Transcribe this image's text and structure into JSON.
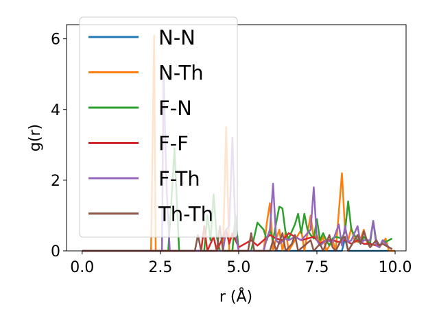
{
  "chart_data": {
    "type": "line",
    "xlabel": "r (Å)",
    "ylabel": "g(r)",
    "xlim": [
      -0.5,
      10.35
    ],
    "ylim": [
      0,
      6.4
    ],
    "x_ticks": [
      0.0,
      2.5,
      5.0,
      7.5,
      10.0
    ],
    "x_tick_labels": [
      "0.0",
      "2.5",
      "5.0",
      "7.5",
      "10.0"
    ],
    "y_ticks": [
      0,
      2,
      4,
      6
    ],
    "y_tick_labels": [
      "0",
      "2",
      "4",
      "6"
    ],
    "grid": false,
    "legend_position": "upper-left",
    "series": [
      {
        "name": "N-N",
        "color": "#1f77b4",
        "points": [
          [
            0,
            0
          ],
          [
            8.3,
            0
          ],
          [
            8.4,
            0.35
          ],
          [
            8.5,
            0
          ],
          [
            10,
            0
          ]
        ]
      },
      {
        "name": "N-Th",
        "color": "#ff7f0e",
        "points": [
          [
            0,
            0
          ],
          [
            2.1,
            0
          ],
          [
            2.2,
            0
          ],
          [
            2.3,
            6.1
          ],
          [
            2.35,
            0
          ],
          [
            2.5,
            0
          ],
          [
            4.5,
            0
          ],
          [
            4.6,
            3.5
          ],
          [
            4.7,
            0
          ],
          [
            5.0,
            0
          ],
          [
            5.8,
            0
          ],
          [
            5.9,
            0.8
          ],
          [
            6.0,
            1.35
          ],
          [
            6.1,
            0
          ],
          [
            6.2,
            0.35
          ],
          [
            6.3,
            0.6
          ],
          [
            6.4,
            0
          ],
          [
            6.5,
            0.55
          ],
          [
            6.6,
            0
          ],
          [
            6.8,
            0.3
          ],
          [
            7.0,
            0.6
          ],
          [
            7.1,
            0
          ],
          [
            7.2,
            0.5
          ],
          [
            7.3,
            1.0
          ],
          [
            7.4,
            0.35
          ],
          [
            7.5,
            0.45
          ],
          [
            7.6,
            0.2
          ],
          [
            7.7,
            0.4
          ],
          [
            7.8,
            0
          ],
          [
            8.0,
            0.3
          ],
          [
            8.1,
            0
          ],
          [
            8.3,
            2.2
          ],
          [
            8.4,
            0.6
          ],
          [
            8.5,
            0.3
          ],
          [
            8.6,
            0.65
          ],
          [
            8.7,
            0.3
          ],
          [
            8.8,
            0.25
          ],
          [
            8.9,
            0.35
          ],
          [
            9.0,
            0.6
          ],
          [
            9.1,
            0.25
          ],
          [
            9.2,
            0.1
          ],
          [
            9.4,
            0.3
          ],
          [
            9.5,
            0.1
          ],
          [
            9.7,
            0.35
          ],
          [
            9.8,
            0
          ],
          [
            10,
            0
          ]
        ]
      },
      {
        "name": "F-N",
        "color": "#2ca02c",
        "points": [
          [
            0,
            0
          ],
          [
            2.75,
            0
          ],
          [
            2.85,
            1.4
          ],
          [
            2.95,
            2.9
          ],
          [
            3.05,
            0.9
          ],
          [
            3.1,
            0
          ],
          [
            3.9,
            0
          ],
          [
            4.0,
            1.0
          ],
          [
            4.1,
            0.3
          ],
          [
            4.2,
            1.6
          ],
          [
            4.3,
            0.4
          ],
          [
            4.4,
            0
          ],
          [
            4.8,
            0
          ],
          [
            4.9,
            1.0
          ],
          [
            5.0,
            0
          ],
          [
            5.4,
            0
          ],
          [
            5.6,
            0.8
          ],
          [
            5.8,
            0.6
          ],
          [
            5.9,
            0.3
          ],
          [
            6.0,
            0.6
          ],
          [
            6.1,
            0.3
          ],
          [
            6.2,
            0.8
          ],
          [
            6.3,
            1.25
          ],
          [
            6.4,
            1.2
          ],
          [
            6.5,
            0.5
          ],
          [
            6.6,
            0.35
          ],
          [
            6.8,
            0.75
          ],
          [
            6.9,
            1.05
          ],
          [
            7.0,
            0.5
          ],
          [
            7.1,
            1.05
          ],
          [
            7.2,
            0.6
          ],
          [
            7.3,
            0.45
          ],
          [
            7.4,
            0.35
          ],
          [
            7.5,
            0.9
          ],
          [
            7.6,
            0.3
          ],
          [
            7.7,
            0.5
          ],
          [
            7.8,
            0.3
          ],
          [
            7.9,
            0.15
          ],
          [
            8.0,
            0.35
          ],
          [
            8.1,
            0.4
          ],
          [
            8.3,
            0.35
          ],
          [
            8.4,
            0.55
          ],
          [
            8.5,
            1.4
          ],
          [
            8.6,
            0.6
          ],
          [
            8.7,
            0.45
          ],
          [
            8.8,
            0.3
          ],
          [
            8.9,
            0.2
          ],
          [
            9.0,
            0.4
          ],
          [
            9.2,
            0.2
          ],
          [
            9.3,
            0.85
          ],
          [
            9.4,
            0.25
          ],
          [
            9.5,
            0.1
          ],
          [
            9.6,
            0.3
          ],
          [
            9.7,
            0.25
          ],
          [
            9.8,
            0.3
          ],
          [
            9.9,
            0.35
          ]
        ]
      },
      {
        "name": "F-F",
        "color": "#d62728",
        "points": [
          [
            0,
            0
          ],
          [
            3.8,
            0
          ],
          [
            3.9,
            0.7
          ],
          [
            4.0,
            0
          ],
          [
            4.2,
            0.4
          ],
          [
            4.3,
            0
          ],
          [
            4.6,
            0.6
          ],
          [
            4.7,
            0.2
          ],
          [
            4.8,
            0.5
          ],
          [
            4.9,
            0.3
          ],
          [
            5.0,
            0.1
          ],
          [
            5.4,
            0.3
          ],
          [
            5.6,
            0.15
          ],
          [
            5.8,
            0.3
          ],
          [
            6.0,
            0.45
          ],
          [
            6.2,
            0.35
          ],
          [
            6.4,
            0.3
          ],
          [
            6.6,
            0.5
          ],
          [
            6.8,
            0.4
          ],
          [
            7.0,
            0.3
          ],
          [
            7.2,
            0.35
          ],
          [
            7.4,
            0.4
          ],
          [
            7.6,
            0.2
          ],
          [
            7.8,
            0.3
          ],
          [
            8.0,
            0.3
          ],
          [
            8.2,
            0.25
          ],
          [
            8.4,
            0.3
          ],
          [
            8.6,
            0.2
          ],
          [
            8.8,
            0.3
          ],
          [
            9.0,
            0.2
          ],
          [
            9.2,
            0.2
          ],
          [
            9.4,
            0.15
          ],
          [
            9.6,
            0.2
          ],
          [
            9.8,
            0.1
          ],
          [
            9.9,
            0.05
          ]
        ]
      },
      {
        "name": "F-Th",
        "color": "#9467bd",
        "points": [
          [
            0,
            0
          ],
          [
            2.55,
            0
          ],
          [
            2.6,
            5.0
          ],
          [
            2.7,
            1.7
          ],
          [
            2.8,
            0
          ],
          [
            3.0,
            0
          ],
          [
            4.5,
            0
          ],
          [
            4.6,
            0.6
          ],
          [
            4.7,
            0.7
          ],
          [
            4.8,
            3.2
          ],
          [
            4.9,
            0.5
          ],
          [
            5.0,
            0
          ],
          [
            5.8,
            0
          ],
          [
            5.9,
            0.35
          ],
          [
            6.0,
            0.6
          ],
          [
            6.1,
            1.9
          ],
          [
            6.2,
            0.3
          ],
          [
            6.3,
            0.2
          ],
          [
            6.5,
            0.35
          ],
          [
            6.6,
            0.3
          ],
          [
            6.8,
            0.4
          ],
          [
            7.0,
            0.3
          ],
          [
            7.2,
            0.5
          ],
          [
            7.3,
            0.6
          ],
          [
            7.4,
            1.8
          ],
          [
            7.5,
            0.3
          ],
          [
            7.6,
            0.15
          ],
          [
            7.8,
            0.3
          ],
          [
            8.0,
            0.25
          ],
          [
            8.1,
            0.5
          ],
          [
            8.2,
            0.75
          ],
          [
            8.3,
            0.15
          ],
          [
            8.4,
            0.7
          ],
          [
            8.5,
            0.25
          ],
          [
            8.6,
            0.3
          ],
          [
            8.8,
            0.7
          ],
          [
            8.9,
            0.2
          ],
          [
            9.0,
            0.3
          ],
          [
            9.2,
            0.3
          ],
          [
            9.3,
            0.85
          ],
          [
            9.4,
            0.15
          ],
          [
            9.5,
            0.1
          ],
          [
            9.6,
            0.3
          ],
          [
            9.8,
            0.1
          ],
          [
            9.9,
            0.05
          ]
        ]
      },
      {
        "name": "Th-Th",
        "color": "#8c564b",
        "points": [
          [
            0,
            0
          ],
          [
            3.6,
            0
          ],
          [
            3.7,
            0.45
          ],
          [
            3.8,
            0
          ],
          [
            4.3,
            0
          ],
          [
            4.4,
            0.7
          ],
          [
            4.5,
            0
          ],
          [
            5.3,
            0
          ],
          [
            5.4,
            0.5
          ],
          [
            5.5,
            0
          ],
          [
            6.0,
            0
          ],
          [
            6.1,
            0.3
          ],
          [
            6.2,
            0
          ],
          [
            6.4,
            0.5
          ],
          [
            6.5,
            0
          ],
          [
            6.7,
            0.2
          ],
          [
            6.8,
            0.45
          ],
          [
            6.9,
            0
          ],
          [
            7.3,
            0.3
          ],
          [
            7.4,
            0
          ],
          [
            7.6,
            0.2
          ],
          [
            7.7,
            0
          ],
          [
            7.9,
            0.45
          ],
          [
            8.0,
            0.1
          ],
          [
            8.1,
            0
          ],
          [
            8.3,
            0.35
          ],
          [
            8.4,
            0.4
          ],
          [
            8.5,
            0
          ],
          [
            8.8,
            0.45
          ],
          [
            8.9,
            0.2
          ],
          [
            9.0,
            0.55
          ],
          [
            9.1,
            0.3
          ],
          [
            9.2,
            0.1
          ],
          [
            9.4,
            0.3
          ],
          [
            9.5,
            0.15
          ],
          [
            9.6,
            0.2
          ],
          [
            9.8,
            0.1
          ],
          [
            9.9,
            0.05
          ]
        ]
      }
    ]
  }
}
